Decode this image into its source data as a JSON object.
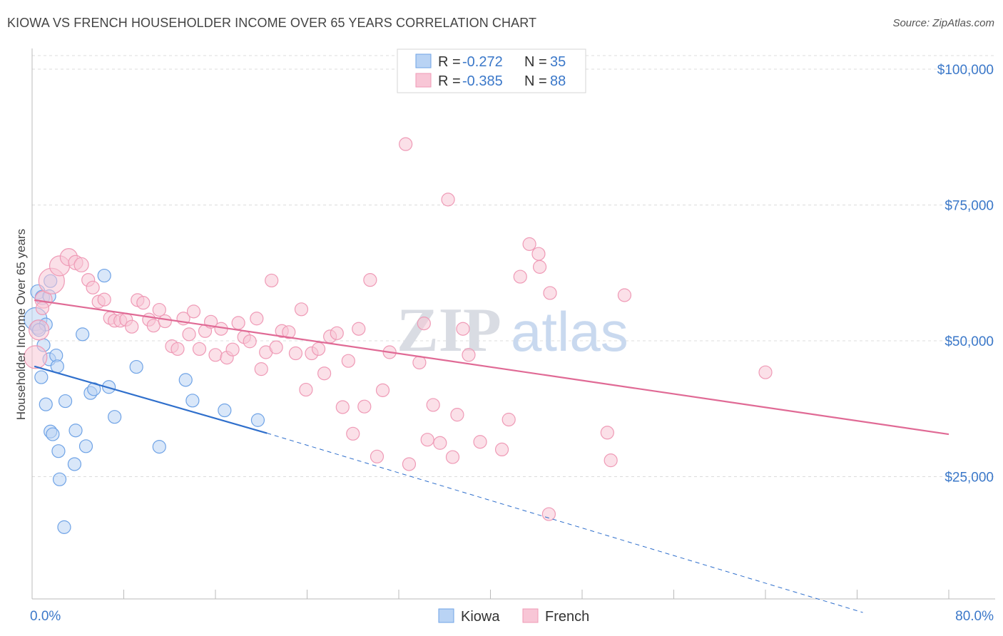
{
  "header": {
    "title": "KIOWA VS FRENCH HOUSEHOLDER INCOME OVER 65 YEARS CORRELATION CHART",
    "source": "Source: ZipAtlas.com"
  },
  "watermark": {
    "zip": "ZIP",
    "atlas": "atlas"
  },
  "chart_data": {
    "type": "scatter",
    "title": "KIOWA VS FRENCH HOUSEHOLDER INCOME OVER 65 YEARS CORRELATION CHART",
    "ylabel": "Householder Income Over 65 years",
    "xlabel": "",
    "xlim": [
      0,
      80
    ],
    "ylim": [
      0,
      104000
    ],
    "x_tick_labels": [
      {
        "value": 0,
        "label": "0.0%"
      },
      {
        "value": 80,
        "label": "80.0%"
      }
    ],
    "y_ticks": [
      {
        "value": 25000,
        "label": "$25,000"
      },
      {
        "value": 50000,
        "label": "$50,000"
      },
      {
        "value": 75000,
        "label": "$75,000"
      },
      {
        "value": 100000,
        "label": "$100,000"
      }
    ],
    "grid": true,
    "legend_position": "bottom-center",
    "stats_box": [
      {
        "r_label": "R = ",
        "r_value": "-0.272",
        "n_label": "N = ",
        "n_value": "35"
      },
      {
        "r_label": "R = ",
        "r_value": "-0.385",
        "n_label": "N = ",
        "n_value": "88"
      }
    ],
    "series": [
      {
        "name": "Kiowa",
        "color": "#6fa3e6",
        "fill": "#b9d3f4",
        "line_color": "#2f6fcc",
        "trend": {
          "x0": 0.2,
          "y0": 45300,
          "x1": 20.5,
          "y1": 33000,
          "dash_to_x": 72.5,
          "dash_to_y": 0
        },
        "points": [
          [
            0.3,
            54000,
            16
          ],
          [
            0.5,
            52500,
            10
          ],
          [
            0.5,
            59000,
            10
          ],
          [
            0.9,
            58000,
            10
          ],
          [
            1.0,
            49200,
            9
          ],
          [
            1.2,
            53000,
            9
          ],
          [
            0.8,
            43300,
            9
          ],
          [
            1.2,
            38300,
            9
          ],
          [
            1.6,
            61000,
            9
          ],
          [
            1.5,
            46600,
            9
          ],
          [
            1.6,
            33300,
            9
          ],
          [
            1.8,
            32800,
            9
          ],
          [
            2.1,
            47300,
            9
          ],
          [
            2.2,
            45300,
            9
          ],
          [
            2.3,
            29700,
            9
          ],
          [
            2.4,
            24500,
            9
          ],
          [
            2.9,
            38900,
            9
          ],
          [
            2.8,
            15700,
            9
          ],
          [
            3.7,
            27300,
            9
          ],
          [
            3.8,
            33500,
            9
          ],
          [
            4.4,
            51200,
            9
          ],
          [
            4.7,
            30600,
            9
          ],
          [
            5.1,
            40400,
            9
          ],
          [
            5.4,
            41100,
            9
          ],
          [
            6.3,
            62000,
            9
          ],
          [
            6.7,
            41500,
            9
          ],
          [
            7.2,
            36000,
            9
          ],
          [
            9.1,
            45200,
            9
          ],
          [
            11.1,
            30500,
            9
          ],
          [
            13.4,
            42800,
            9
          ],
          [
            14.0,
            39000,
            9
          ],
          [
            16.8,
            37200,
            9
          ],
          [
            19.7,
            35400,
            9
          ],
          [
            1.5,
            58200,
            9
          ],
          [
            0.6,
            52000,
            9
          ]
        ]
      },
      {
        "name": "French",
        "color": "#ef9ab6",
        "fill": "#f8c6d6",
        "line_color": "#e06a95",
        "trend": {
          "x0": 0.2,
          "y0": 57500,
          "x1": 80,
          "y1": 32800
        },
        "points": [
          [
            0.3,
            47000,
            16
          ],
          [
            0.6,
            52000,
            14
          ],
          [
            1.0,
            57600,
            12
          ],
          [
            1.7,
            61000,
            18
          ],
          [
            2.4,
            63800,
            14
          ],
          [
            3.2,
            65400,
            12
          ],
          [
            3.8,
            64400,
            10
          ],
          [
            4.3,
            64000,
            10
          ],
          [
            4.9,
            61200,
            9
          ],
          [
            5.3,
            59800,
            9
          ],
          [
            5.8,
            57200,
            9
          ],
          [
            6.3,
            57600,
            9
          ],
          [
            6.8,
            54200,
            9
          ],
          [
            7.2,
            53700,
            9
          ],
          [
            7.7,
            53700,
            9
          ],
          [
            8.2,
            53900,
            9
          ],
          [
            8.7,
            52600,
            9
          ],
          [
            9.2,
            57500,
            9
          ],
          [
            9.7,
            57000,
            9
          ],
          [
            10.2,
            53900,
            9
          ],
          [
            10.6,
            52800,
            9
          ],
          [
            11.1,
            55700,
            9
          ],
          [
            11.6,
            53600,
            9
          ],
          [
            12.2,
            49000,
            9
          ],
          [
            12.7,
            48500,
            9
          ],
          [
            13.2,
            54100,
            9
          ],
          [
            13.7,
            51200,
            9
          ],
          [
            14.1,
            55400,
            9
          ],
          [
            14.6,
            48500,
            9
          ],
          [
            15.1,
            51800,
            9
          ],
          [
            15.6,
            53500,
            9
          ],
          [
            16.0,
            47400,
            9
          ],
          [
            16.5,
            52200,
            9
          ],
          [
            17.0,
            46900,
            9
          ],
          [
            17.5,
            48400,
            9
          ],
          [
            18.0,
            53300,
            9
          ],
          [
            18.5,
            50700,
            9
          ],
          [
            19.0,
            49900,
            9
          ],
          [
            19.6,
            54100,
            9
          ],
          [
            20.0,
            44800,
            9
          ],
          [
            20.4,
            47900,
            9
          ],
          [
            20.9,
            61100,
            9
          ],
          [
            21.3,
            48800,
            9
          ],
          [
            21.8,
            51800,
            9
          ],
          [
            22.4,
            51600,
            9
          ],
          [
            23.0,
            47700,
            9
          ],
          [
            23.5,
            55800,
            9
          ],
          [
            23.9,
            41000,
            9
          ],
          [
            24.4,
            47700,
            9
          ],
          [
            25.0,
            48500,
            9
          ],
          [
            25.5,
            44000,
            9
          ],
          [
            26.0,
            50800,
            9
          ],
          [
            26.6,
            51400,
            9
          ],
          [
            27.1,
            37800,
            9
          ],
          [
            27.6,
            46300,
            9
          ],
          [
            28.0,
            32900,
            9
          ],
          [
            28.5,
            52200,
            9
          ],
          [
            29.0,
            37900,
            9
          ],
          [
            29.5,
            61200,
            9
          ],
          [
            30.1,
            28700,
            9
          ],
          [
            30.6,
            40900,
            9
          ],
          [
            31.2,
            47900,
            9
          ],
          [
            32.6,
            86200,
            9
          ],
          [
            32.9,
            27300,
            9
          ],
          [
            33.8,
            46000,
            9
          ],
          [
            34.2,
            53200,
            9
          ],
          [
            34.5,
            31800,
            9
          ],
          [
            35.0,
            38200,
            9
          ],
          [
            35.6,
            31200,
            9
          ],
          [
            36.3,
            76000,
            9
          ],
          [
            36.7,
            28600,
            9
          ],
          [
            37.1,
            36400,
            9
          ],
          [
            37.6,
            52200,
            9
          ],
          [
            38.1,
            47400,
            9
          ],
          [
            39.1,
            31400,
            9
          ],
          [
            41.0,
            30000,
            9
          ],
          [
            41.6,
            35500,
            9
          ],
          [
            42.6,
            61800,
            9
          ],
          [
            43.4,
            67800,
            9
          ],
          [
            44.2,
            66000,
            9
          ],
          [
            44.3,
            63600,
            9
          ],
          [
            45.2,
            58800,
            9
          ],
          [
            45.1,
            18100,
            9
          ],
          [
            50.2,
            33100,
            9
          ],
          [
            50.5,
            28000,
            9
          ],
          [
            51.7,
            58400,
            9
          ],
          [
            64.0,
            44200,
            9
          ],
          [
            0.9,
            56000,
            9
          ]
        ]
      }
    ]
  }
}
